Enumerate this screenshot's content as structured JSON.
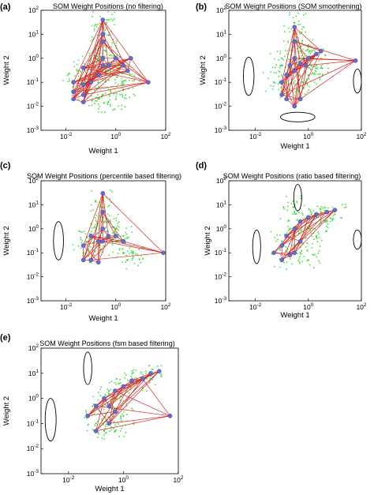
{
  "figure": {
    "x_tick_labels": [
      "10^-2",
      "10^0",
      "10^2"
    ],
    "y_tick_labels": [
      "10^-3",
      "10^-2",
      "10^-1",
      "10^0",
      "10^1",
      "10^2"
    ]
  },
  "chart_data": [
    {
      "type": "scatter",
      "panel_label": "(a)",
      "title": "SOM Weight Positions (no filtering)",
      "xlabel": "Weight 1",
      "ylabel": "Weight 2",
      "xscale": "log",
      "yscale": "log",
      "xlim": [
        0.001,
        100
      ],
      "ylim": [
        0.001,
        100
      ],
      "grid": false,
      "ellipses": 0,
      "colors": {
        "data": "#33dd33",
        "neurons": "#6a6acc",
        "links": "#dd2222"
      },
      "series": [
        {
          "role": "data",
          "x": [
            0.02,
            0.03,
            0.05,
            0.08,
            0.1,
            0.15,
            0.2,
            0.3,
            0.4,
            0.5,
            0.7,
            1,
            1.5,
            2,
            3,
            0.2,
            0.3,
            0.5,
            1,
            2,
            0.3,
            0.3,
            0.3,
            0.3
          ],
          "y": [
            0.1,
            0.3,
            0.05,
            0.5,
            0.2,
            1,
            0.1,
            0.4,
            2,
            0.3,
            0.6,
            0.2,
            0.5,
            0.08,
            0.3,
            0.02,
            0.03,
            0.015,
            0.02,
            0.05,
            5,
            10,
            20,
            40
          ]
        },
        {
          "role": "neurons",
          "x": [
            0.02,
            0.02,
            0.02,
            0.05,
            0.05,
            0.1,
            0.2,
            0.3,
            0.3,
            0.5,
            1,
            2,
            3,
            0.3,
            0.3,
            0.3,
            0.05,
            20,
            4,
            0.05
          ],
          "y": [
            0.1,
            0.04,
            0.02,
            0.08,
            0.03,
            0.1,
            0.2,
            0.5,
            1,
            0.5,
            1,
            0.5,
            0.3,
            5,
            10,
            40,
            0.015,
            0.1,
            1,
            0.4
          ]
        }
      ]
    },
    {
      "type": "scatter",
      "panel_label": "(b)",
      "title": "SOM Weight Positions (SOM smoothening)",
      "xlabel": "Weight 1",
      "ylabel": "Weight 2",
      "xscale": "log",
      "yscale": "log",
      "xlim": [
        0.001,
        100
      ],
      "ylim": [
        0.001,
        100
      ],
      "grid": false,
      "ellipses": 3,
      "colors": {
        "data": "#33dd33",
        "neurons": "#6a6acc",
        "links": "#dd2222"
      },
      "series": [
        {
          "role": "data",
          "x": [
            0.05,
            0.1,
            0.2,
            0.3,
            0.5,
            0.8,
            1,
            1.5,
            2,
            0.3,
            0.3,
            0.3,
            0.4,
            0.6,
            1,
            3,
            0.1,
            0.2
          ],
          "y": [
            0.1,
            0.5,
            0.2,
            1,
            2,
            0.6,
            3,
            1,
            0.5,
            5,
            10,
            30,
            0.05,
            0.1,
            0.2,
            0.4,
            1,
            0.05
          ]
        },
        {
          "role": "neurons",
          "x": [
            0.1,
            0.1,
            0.15,
            0.2,
            0.3,
            0.3,
            0.5,
            1,
            2,
            3,
            0.3,
            0.3,
            0.15,
            0.5,
            0.3,
            0.8,
            60
          ],
          "y": [
            0.1,
            0.03,
            0.2,
            0.5,
            1,
            0.3,
            0.6,
            1,
            1.5,
            2,
            5,
            20,
            0.02,
            0.02,
            0.01,
            0.5,
            0.8
          ]
        }
      ]
    },
    {
      "type": "scatter",
      "panel_label": "(c)",
      "title": "SOM Weight Positions (percentile based filtering)",
      "xlabel": "Weight 1",
      "ylabel": "Weight 2",
      "xscale": "log",
      "yscale": "log",
      "xlim": [
        0.001,
        100
      ],
      "ylim": [
        0.001,
        100
      ],
      "grid": false,
      "ellipses": 1,
      "colors": {
        "data": "#33dd33",
        "neurons": "#6a6acc",
        "links": "#dd2222"
      },
      "series": [
        {
          "role": "data",
          "x": [
            0.05,
            0.08,
            0.1,
            0.2,
            0.3,
            0.5,
            1,
            2,
            3,
            0.3,
            0.3,
            0.3,
            0.5,
            1,
            2,
            5
          ],
          "y": [
            0.1,
            0.3,
            0.5,
            0.2,
            1,
            0.5,
            0.3,
            0.1,
            0.05,
            3,
            8,
            20,
            2,
            1,
            0.5,
            0.1
          ]
        },
        {
          "role": "neurons",
          "x": [
            0.05,
            0.05,
            0.1,
            0.2,
            0.3,
            0.3,
            0.5,
            1,
            2,
            0.3,
            0.3,
            80,
            0.1,
            0.2
          ],
          "y": [
            0.2,
            0.05,
            0.5,
            0.3,
            1,
            0.3,
            0.5,
            0.5,
            0.3,
            5,
            30,
            0.1,
            0.05,
            0.04
          ]
        }
      ]
    },
    {
      "type": "scatter",
      "panel_label": "(d)",
      "title": "SOM Weight Positions (ratio based filtering)",
      "xlabel": "Weight 1",
      "ylabel": "Weight 2",
      "xscale": "log",
      "yscale": "log",
      "xlim": [
        0.001,
        100
      ],
      "ylim": [
        0.001,
        100
      ],
      "grid": false,
      "ellipses": 3,
      "colors": {
        "data": "#33dd33",
        "neurons": "#6a6acc",
        "links": "#dd2222"
      },
      "series": [
        {
          "role": "data",
          "x": [
            0.1,
            0.2,
            0.3,
            0.5,
            1,
            2,
            3,
            5,
            0.3,
            0.3,
            0.5,
            1,
            2,
            10,
            0.1,
            0.2
          ],
          "y": [
            0.3,
            1,
            0.5,
            2,
            1,
            3,
            5,
            2,
            5,
            10,
            0.1,
            0.05,
            0.5,
            4,
            0.05,
            0.1
          ]
        },
        {
          "role": "neurons",
          "x": [
            0.05,
            0.1,
            0.15,
            0.3,
            0.5,
            1,
            2,
            5,
            10,
            0.3,
            0.5,
            0.1,
            0.2
          ],
          "y": [
            0.1,
            0.2,
            0.5,
            1,
            2,
            3,
            4,
            5,
            6,
            0.1,
            0.3,
            0.05,
            0.08
          ]
        }
      ]
    },
    {
      "type": "scatter",
      "panel_label": "(e)",
      "title": "SOM Weight Positions (fsm based filtering)",
      "xlabel": "Weight 1",
      "ylabel": "Weight 2",
      "xscale": "log",
      "yscale": "log",
      "xlim": [
        0.001,
        100
      ],
      "ylim": [
        0.001,
        100
      ],
      "grid": false,
      "ellipses": 2,
      "colors": {
        "data": "#33dd33",
        "neurons": "#6a6acc",
        "links": "#dd2222"
      },
      "series": [
        {
          "role": "data",
          "x": [
            0.1,
            0.2,
            0.3,
            0.5,
            1,
            2,
            3,
            5,
            10,
            0.3,
            0.5,
            1,
            0.1,
            0.2,
            0.5
          ],
          "y": [
            0.5,
            1,
            2,
            1,
            3,
            5,
            4,
            6,
            8,
            0.1,
            0.05,
            0.2,
            0.1,
            0.05,
            0.3
          ]
        },
        {
          "role": "neurons",
          "x": [
            0.05,
            0.1,
            0.2,
            0.3,
            0.5,
            1,
            2,
            5,
            10,
            20,
            0.3,
            0.5,
            0.1,
            50
          ],
          "y": [
            0.2,
            0.5,
            1,
            0.5,
            2,
            3,
            5,
            6,
            10,
            12,
            0.1,
            0.3,
            0.05,
            0.2
          ]
        }
      ]
    }
  ]
}
